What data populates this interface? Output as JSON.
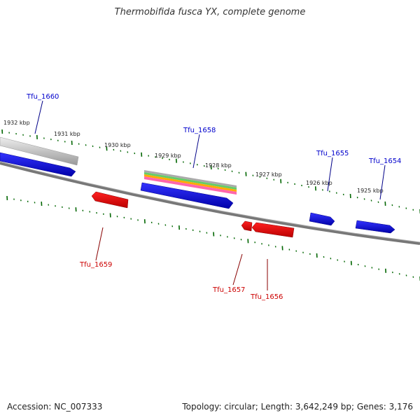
{
  "title": "Thermobifida fusca YX, complete genome",
  "footer": {
    "accession": "Accession: NC_007333",
    "stats": "Topology: circular; Length: 3,642,249 bp; Genes: 3,176"
  },
  "kbp_labels": [
    "1932 kbp",
    "1931 kbp",
    "1930 kbp",
    "1929 kbp",
    "1928 kbp",
    "1927 kbp",
    "1926 kbp",
    "1925 kbp"
  ],
  "genes": [
    {
      "id": "Tfu_1660",
      "strand": "forward",
      "color": "#0000cc"
    },
    {
      "id": "Tfu_1659",
      "strand": "reverse",
      "color": "#cc0000"
    },
    {
      "id": "Tfu_1658",
      "strand": "forward",
      "color": "#0000cc"
    },
    {
      "id": "Tfu_1657",
      "strand": "reverse",
      "color": "#cc0000"
    },
    {
      "id": "Tfu_1656",
      "strand": "reverse",
      "color": "#cc0000"
    },
    {
      "id": "Tfu_1655",
      "strand": "forward",
      "color": "#0000cc"
    },
    {
      "id": "Tfu_1654",
      "strand": "forward",
      "color": "#0000cc"
    }
  ],
  "colors": {
    "forward_gene": "#0000ff",
    "reverse_gene": "#ff0000",
    "backbone": "#808080",
    "tick": "#006600",
    "feature_bands": [
      "#aaaaaa",
      "#66cc66",
      "#ffaa00",
      "#ff66aa"
    ]
  }
}
